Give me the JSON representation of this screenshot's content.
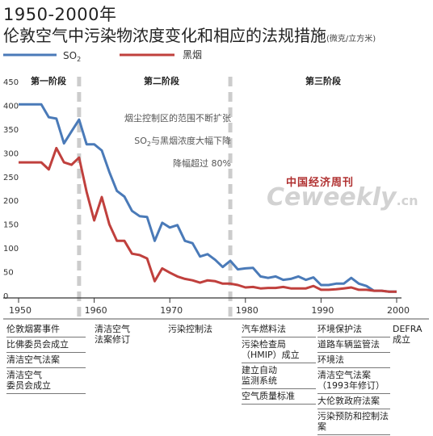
{
  "header": {
    "title_line1": "1950-2000年",
    "title_line2": "伦敦空气中污染物浓度变化和相应的法规措施",
    "unit": "(微克/立方米)"
  },
  "legend": {
    "so2_label": "SO",
    "so2_sub": "2",
    "smoke_label": "黑烟"
  },
  "colors": {
    "so2": "#4a7ab8",
    "smoke": "#c0403d",
    "divider": "#cccccc",
    "axis": "#333333"
  },
  "phases": {
    "p1": "第一阶段",
    "p2": "第二阶段",
    "p3": "第三阶段"
  },
  "annotations": {
    "a1": "烟尘控制区的范围不断扩张",
    "a2_pre": "SO",
    "a2_sub": "2",
    "a2_post": "与黑烟浓度大幅下降",
    "a3": "降幅超过 80%"
  },
  "watermark": {
    "cn": "中国经济周刊",
    "en": "Ceweekly",
    "dot": ".cn"
  },
  "laws": {
    "c1950": [
      "伦敦烟雾事件",
      "比佛委员会成立",
      "清洁空气法案",
      "清洁空气\n委员会成立"
    ],
    "c1960": [
      "清洁空气\n法案修订"
    ],
    "c1970": [
      "污染控制法"
    ],
    "c1980": [
      "汽车燃料法",
      "污染检查局\n（HMIP）成立",
      "建立自动\n监测系统",
      "空气质量标准"
    ],
    "c1990": [
      "环境保护法",
      "道路车辆监管法",
      "环境法",
      "清洁空气法案\n（1993年修订）",
      "大伦敦政府法案",
      "污染预防和控制法案"
    ],
    "c2000": [
      "DEFRA\n成立"
    ]
  },
  "chart_data": {
    "type": "line",
    "title": "1950-2000年伦敦空气中污染物浓度变化和相应的法规措施",
    "ylabel": "(微克/立方米)",
    "xlim": [
      1950,
      2000
    ],
    "ylim": [
      0,
      450
    ],
    "xticks": [
      1950,
      1960,
      1970,
      1980,
      1990,
      2000
    ],
    "yticks": [
      0,
      50,
      100,
      150,
      200,
      250,
      300,
      350,
      400,
      450
    ],
    "grid": false,
    "legend": "top-left",
    "phase_dividers": [
      1958,
      1978
    ],
    "series": [
      {
        "name": "SO2",
        "x": [
          1950,
          1951,
          1952,
          1953,
          1954,
          1955,
          1956,
          1957,
          1958,
          1959,
          1960,
          1961,
          1962,
          1963,
          1964,
          1965,
          1966,
          1967,
          1968,
          1969,
          1970,
          1971,
          1972,
          1973,
          1974,
          1975,
          1976,
          1977,
          1978,
          1979,
          1980,
          1981,
          1982,
          1983,
          1984,
          1985,
          1986,
          1987,
          1988,
          1989,
          1990,
          1991,
          1992,
          1993,
          1994,
          1995,
          1996,
          1997,
          1998,
          1999,
          2000
        ],
        "values": [
          402,
          402,
          402,
          402,
          375,
          372,
          320,
          345,
          370,
          318,
          318,
          305,
          260,
          220,
          208,
          178,
          167,
          165,
          115,
          153,
          143,
          148,
          115,
          110,
          82,
          87,
          75,
          60,
          73,
          55,
          57,
          58,
          40,
          37,
          40,
          33,
          35,
          40,
          33,
          38,
          22,
          22,
          25,
          25,
          37,
          25,
          20,
          10,
          10,
          8,
          8
        ]
      },
      {
        "name": "黑烟",
        "x": [
          1950,
          1951,
          1952,
          1953,
          1954,
          1955,
          1956,
          1957,
          1958,
          1959,
          1960,
          1961,
          1962,
          1963,
          1964,
          1965,
          1966,
          1967,
          1968,
          1969,
          1970,
          1971,
          1972,
          1973,
          1974,
          1975,
          1976,
          1977,
          1978,
          1979,
          1980,
          1981,
          1982,
          1983,
          1984,
          1985,
          1986,
          1987,
          1988,
          1989,
          1990,
          1991,
          1992,
          1993,
          1994,
          1995,
          1996,
          1997,
          1998,
          1999,
          2000
        ],
        "values": [
          280,
          280,
          280,
          280,
          265,
          310,
          280,
          275,
          290,
          218,
          158,
          207,
          150,
          115,
          115,
          88,
          85,
          78,
          30,
          57,
          48,
          40,
          35,
          32,
          27,
          32,
          30,
          25,
          25,
          22,
          17,
          18,
          15,
          16,
          16,
          18,
          15,
          15,
          15,
          20,
          12,
          12,
          13,
          15,
          17,
          12,
          12,
          10,
          10,
          8,
          8
        ]
      }
    ]
  }
}
